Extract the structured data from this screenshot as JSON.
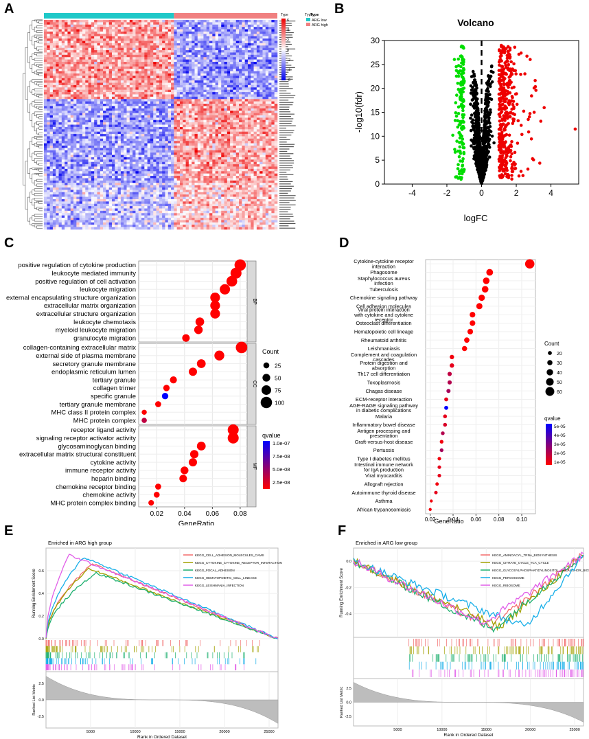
{
  "panel_labels": {
    "A": "A",
    "B": "B",
    "C": "C",
    "D": "D",
    "E": "E",
    "F": "F"
  },
  "colors": {
    "low": "#1fc8c8",
    "high": "#f08080",
    "heat_neg": "#0000ee",
    "heat_pos": "#ee0000",
    "go_high": "#ff0000",
    "go_low": "#0000ff",
    "strip": "#d9d9d9"
  },
  "heatmap": {
    "legend_title": "Type",
    "scale_title": "Type",
    "scale_ticks": [
      "6",
      "4",
      "2",
      "0",
      "-2",
      "-4",
      "-6"
    ],
    "legend_items": [
      {
        "label": "ARG low",
        "color": "#1fc8c8"
      },
      {
        "label": "ARG high",
        "color": "#f08080"
      }
    ],
    "n_low": 44,
    "n_high": 35,
    "n_genes": 90
  },
  "chart_data": [
    {
      "type": "scatter",
      "id": "volcano",
      "title": "Volcano",
      "xlabel": "logFC",
      "ylabel": "-log10(fdr)",
      "xlim": [
        -5.6,
        5.6
      ],
      "ylim": [
        0,
        30
      ],
      "xticks": [
        "-4",
        "-2",
        "0",
        "2",
        "4"
      ],
      "yticks": [
        "0",
        "5",
        "10",
        "15",
        "20",
        "25",
        "30"
      ],
      "xtick_vals": [
        -4,
        -2,
        0,
        2,
        4
      ],
      "ytick_vals": [
        0,
        5,
        10,
        15,
        20,
        25,
        30
      ],
      "groups": [
        {
          "name": "down",
          "color": "#00dd00"
        },
        {
          "name": "ns",
          "color": "#000000"
        },
        {
          "name": "up",
          "color": "#ee0000"
        }
      ],
      "thresholds": [
        -1,
        1
      ]
    },
    {
      "type": "scatter",
      "id": "go",
      "xlabel": "GeneRatio",
      "xlim": [
        0.007,
        0.085
      ],
      "xticks": [
        "0.02",
        "0.04",
        "0.06",
        "0.08"
      ],
      "xtick_vals": [
        0.02,
        0.04,
        0.06,
        0.08
      ],
      "size_legend_title": "Count",
      "size_legend": [
        25,
        50,
        75,
        100
      ],
      "color_legend_title": "qvalue",
      "color_legend_ticks": [
        "1.0e-07",
        "7.5e-08",
        "5.0e-08",
        "2.5e-08"
      ],
      "facets": [
        {
          "name": "BP",
          "terms": [
            {
              "term": "positive regulation of cytokine production",
              "ratio": 0.08,
              "count": 100,
              "q": 0.0
            },
            {
              "term": "leukocyte mediated immunity",
              "ratio": 0.077,
              "count": 95,
              "q": 0.0
            },
            {
              "term": "positive regulation of cell activation",
              "ratio": 0.074,
              "count": 90,
              "q": 0.0
            },
            {
              "term": "leukocyte migration",
              "ratio": 0.069,
              "count": 85,
              "q": 0.0
            },
            {
              "term": "external encapsulating structure organization",
              "ratio": 0.062,
              "count": 78,
              "q": 0.0
            },
            {
              "term": "extracellular matrix organization",
              "ratio": 0.062,
              "count": 78,
              "q": 0.0
            },
            {
              "term": "extracellular structure organization",
              "ratio": 0.062,
              "count": 78,
              "q": 0.0
            },
            {
              "term": "leukocyte chemotaxis",
              "ratio": 0.051,
              "count": 62,
              "q": 0.0
            },
            {
              "term": "myeloid leukocyte migration",
              "ratio": 0.05,
              "count": 60,
              "q": 0.0
            },
            {
              "term": "granulocyte migration",
              "ratio": 0.041,
              "count": 48,
              "q": 0.0
            }
          ]
        },
        {
          "name": "CC",
          "terms": [
            {
              "term": "collagen-containing extracellular matrix",
              "ratio": 0.081,
              "count": 102,
              "q": 0.0
            },
            {
              "term": "external side of plasma membrane",
              "ratio": 0.065,
              "count": 80,
              "q": 0.0
            },
            {
              "term": "secretory granule membrane",
              "ratio": 0.052,
              "count": 65,
              "q": 0.0
            },
            {
              "term": "endoplasmic reticulum lumen",
              "ratio": 0.046,
              "count": 57,
              "q": 0.0
            },
            {
              "term": "tertiary granule",
              "ratio": 0.032,
              "count": 40,
              "q": 0.0
            },
            {
              "term": "collagen trimer",
              "ratio": 0.027,
              "count": 33,
              "q": 0.0
            },
            {
              "term": "specific granule",
              "ratio": 0.026,
              "count": 32,
              "q": 1.0
            },
            {
              "term": "tertiary granule membrane",
              "ratio": 0.021,
              "count": 26,
              "q": 0.0
            },
            {
              "term": "MHC class II protein complex",
              "ratio": 0.011,
              "count": 14,
              "q": 0.0
            },
            {
              "term": "MHC protein complex",
              "ratio": 0.011,
              "count": 15,
              "q": 0.25
            }
          ]
        },
        {
          "name": "MF",
          "terms": [
            {
              "term": "receptor ligand activity",
              "ratio": 0.075,
              "count": 94,
              "q": 0.0
            },
            {
              "term": "signaling receptor activator activity",
              "ratio": 0.075,
              "count": 94,
              "q": 0.0
            },
            {
              "term": "glycosaminoglycan binding",
              "ratio": 0.052,
              "count": 64,
              "q": 0.0
            },
            {
              "term": "extracellular matrix structural constituent",
              "ratio": 0.047,
              "count": 58,
              "q": 0.0
            },
            {
              "term": "cytokine activity",
              "ratio": 0.046,
              "count": 57,
              "q": 0.0
            },
            {
              "term": "immune receptor activity",
              "ratio": 0.04,
              "count": 50,
              "q": 0.0
            },
            {
              "term": "heparin binding",
              "ratio": 0.039,
              "count": 48,
              "q": 0.0
            },
            {
              "term": "chemokine receptor binding",
              "ratio": 0.021,
              "count": 26,
              "q": 0.0
            },
            {
              "term": "chemokine activity",
              "ratio": 0.02,
              "count": 25,
              "q": 0.0
            },
            {
              "term": "MHC protein complex binding",
              "ratio": 0.016,
              "count": 20,
              "q": 0.0
            }
          ]
        }
      ]
    },
    {
      "type": "scatter",
      "id": "kegg",
      "xlabel": "GeneRatio",
      "xlim": [
        0.016,
        0.112
      ],
      "xticks": [
        "0.02",
        "0.04",
        "0.06",
        "0.08",
        "0.10"
      ],
      "xtick_vals": [
        0.02,
        0.04,
        0.06,
        0.08,
        0.1
      ],
      "size_legend_title": "Count",
      "size_legend": [
        20,
        30,
        40,
        50,
        60
      ],
      "color_legend_title": "qvalue",
      "color_legend_ticks": [
        "5e-05",
        "4e-05",
        "3e-05",
        "2e-05",
        "1e-05"
      ],
      "terms": [
        {
          "term": "Cytokine-cytokine receptor|interaction",
          "ratio": 0.107,
          "count": 64,
          "q": 0.0
        },
        {
          "term": "Phagosome",
          "ratio": 0.072,
          "count": 43,
          "q": 0.0
        },
        {
          "term": "Staphylococcus aureus|infection",
          "ratio": 0.069,
          "count": 41,
          "q": 0.0
        },
        {
          "term": "Tuberculosis",
          "ratio": 0.068,
          "count": 41,
          "q": 0.0
        },
        {
          "term": "Chemokine signaling pathway",
          "ratio": 0.065,
          "count": 39,
          "q": 0.0
        },
        {
          "term": "Cell adhesion molecules",
          "ratio": 0.063,
          "count": 38,
          "q": 0.0
        },
        {
          "term": "Viral protein interaction|with cytokine and cytokine|receptor",
          "ratio": 0.057,
          "count": 34,
          "q": 0.0
        },
        {
          "term": "Osteoclast differentiation",
          "ratio": 0.057,
          "count": 34,
          "q": 0.0
        },
        {
          "term": "Hematopoietic cell lineage",
          "ratio": 0.055,
          "count": 33,
          "q": 0.0
        },
        {
          "term": "Rheumatoid arthritis",
          "ratio": 0.052,
          "count": 31,
          "q": 0.0
        },
        {
          "term": "Leishmaniasis",
          "ratio": 0.05,
          "count": 30,
          "q": 0.0
        },
        {
          "term": "Complement and coagulation|cascades",
          "ratio": 0.039,
          "count": 23,
          "q": 0.05
        },
        {
          "term": "Protein digestion and|absorption",
          "ratio": 0.039,
          "count": 23,
          "q": 0.1
        },
        {
          "term": "Th17 cell differentiation",
          "ratio": 0.037,
          "count": 22,
          "q": 0.25
        },
        {
          "term": "Toxoplasmosis",
          "ratio": 0.037,
          "count": 22,
          "q": 0.3
        },
        {
          "term": "Chagas disease",
          "ratio": 0.036,
          "count": 21,
          "q": 0.35
        },
        {
          "term": "ECM-receptor interaction",
          "ratio": 0.034,
          "count": 20,
          "q": 0.1
        },
        {
          "term": "AGE-RAGE signaling pathway|in diabetic complications",
          "ratio": 0.034,
          "count": 20,
          "q": 1.0
        },
        {
          "term": "Malaria",
          "ratio": 0.033,
          "count": 19,
          "q": 0.1
        },
        {
          "term": "Inflammatory bowel disease",
          "ratio": 0.033,
          "count": 19,
          "q": 0.15
        },
        {
          "term": "Antigen processing and|presentation",
          "ratio": 0.031,
          "count": 18,
          "q": 0.3
        },
        {
          "term": "Graft-versus-host disease",
          "ratio": 0.03,
          "count": 18,
          "q": 0.05
        },
        {
          "term": "Pertussis",
          "ratio": 0.03,
          "count": 18,
          "q": 0.35
        },
        {
          "term": "Type I diabetes mellitus",
          "ratio": 0.028,
          "count": 17,
          "q": 0.05
        },
        {
          "term": "Intestinal immune network|for IgA production",
          "ratio": 0.028,
          "count": 17,
          "q": 0.1
        },
        {
          "term": "Viral myocarditis",
          "ratio": 0.028,
          "count": 17,
          "q": 0.1
        },
        {
          "term": "Allograft rejection",
          "ratio": 0.026,
          "count": 15,
          "q": 0.05
        },
        {
          "term": "Autoimmune thyroid disease",
          "ratio": 0.025,
          "count": 15,
          "q": 0.1
        },
        {
          "term": "Asthma",
          "ratio": 0.021,
          "count": 12,
          "q": 0.05
        },
        {
          "term": "African trypanosomiasis",
          "ratio": 0.02,
          "count": 12,
          "q": 0.05
        }
      ]
    },
    {
      "type": "line",
      "id": "gsea_high",
      "title": "Enriched in ARG high group",
      "ylabel": "Running Enrichment Score",
      "ylabel2": "Ranked List Metric",
      "xlabel": "Rank in Ordered Dataset",
      "xlim": [
        0,
        26000
      ],
      "ylim": [
        0,
        0.8
      ],
      "xticks": [
        "5000",
        "10000",
        "15000",
        "20000",
        "25000"
      ],
      "xtick_vals": [
        5000,
        10000,
        15000,
        20000,
        25000
      ],
      "yticks": [
        "0.0",
        "0.2",
        "0.4",
        "0.6"
      ],
      "ytick_vals": [
        0,
        0.2,
        0.4,
        0.6
      ],
      "metric_ticks": [
        "2.5",
        "0.0",
        "-2.5"
      ],
      "series": [
        {
          "name": "KEGG_CELL_ADHESION_MOLECULES_CAMS",
          "color": "#f26b6b",
          "peak": 0.66,
          "peak_x": 5200
        },
        {
          "name": "KEGG_CYTOKINE_CYTOKINE_RECEPTOR_INTERACTION",
          "color": "#a2a000",
          "peak": 0.62,
          "peak_x": 4800
        },
        {
          "name": "KEGG_FOCAL_ADHESION",
          "color": "#1fb070",
          "peak": 0.58,
          "peak_x": 5600
        },
        {
          "name": "KEGG_HEMATOPOIETIC_CELL_LINEAGE",
          "color": "#16aee8",
          "peak": 0.72,
          "peak_x": 4200
        },
        {
          "name": "KEGG_LEISHMANIA_INFECTION",
          "color": "#e15ee8",
          "peak": 0.74,
          "peak_x": 2600
        }
      ]
    },
    {
      "type": "line",
      "id": "gsea_low",
      "title": "Enriched in ARG low group",
      "ylabel": "Running Enrichment Score",
      "ylabel2": "Ranked List Metric",
      "xlabel": "Rank in Ordered Dataset",
      "xlim": [
        0,
        26000
      ],
      "ylim": [
        -0.58,
        0.1
      ],
      "xticks": [
        "5000",
        "10000",
        "15000",
        "20000",
        "25000"
      ],
      "xtick_vals": [
        5000,
        10000,
        15000,
        20000,
        25000
      ],
      "yticks": [
        "0.0",
        "-0.2",
        "-0.4"
      ],
      "ytick_vals": [
        0,
        -0.2,
        -0.4
      ],
      "metric_ticks": [
        "2.5",
        "0.0",
        "-2.5"
      ],
      "series": [
        {
          "name": "KEGG_AMINOACYL_TRNA_BIOSYNTHESIS",
          "color": "#f26b6b",
          "trough": -0.5,
          "trough_x": 15500
        },
        {
          "name": "KEGG_CITRATE_CYCLE_TCA_CYCLE",
          "color": "#a2a000",
          "trough": -0.5,
          "trough_x": 16500
        },
        {
          "name": "KEGG_GLYCOSYLPHOSPHATIDYLINOSITOL_GPI_ANCHOR_BIOSYNTH",
          "color": "#1fb070",
          "trough": -0.52,
          "trough_x": 15800
        },
        {
          "name": "KEGG_PEROXISOME",
          "color": "#16aee8",
          "trough": -0.5,
          "trough_x": 19500
        },
        {
          "name": "KEGG_RIBOSOME",
          "color": "#e15ee8",
          "trough": -0.47,
          "trough_x": 14800
        }
      ]
    }
  ]
}
